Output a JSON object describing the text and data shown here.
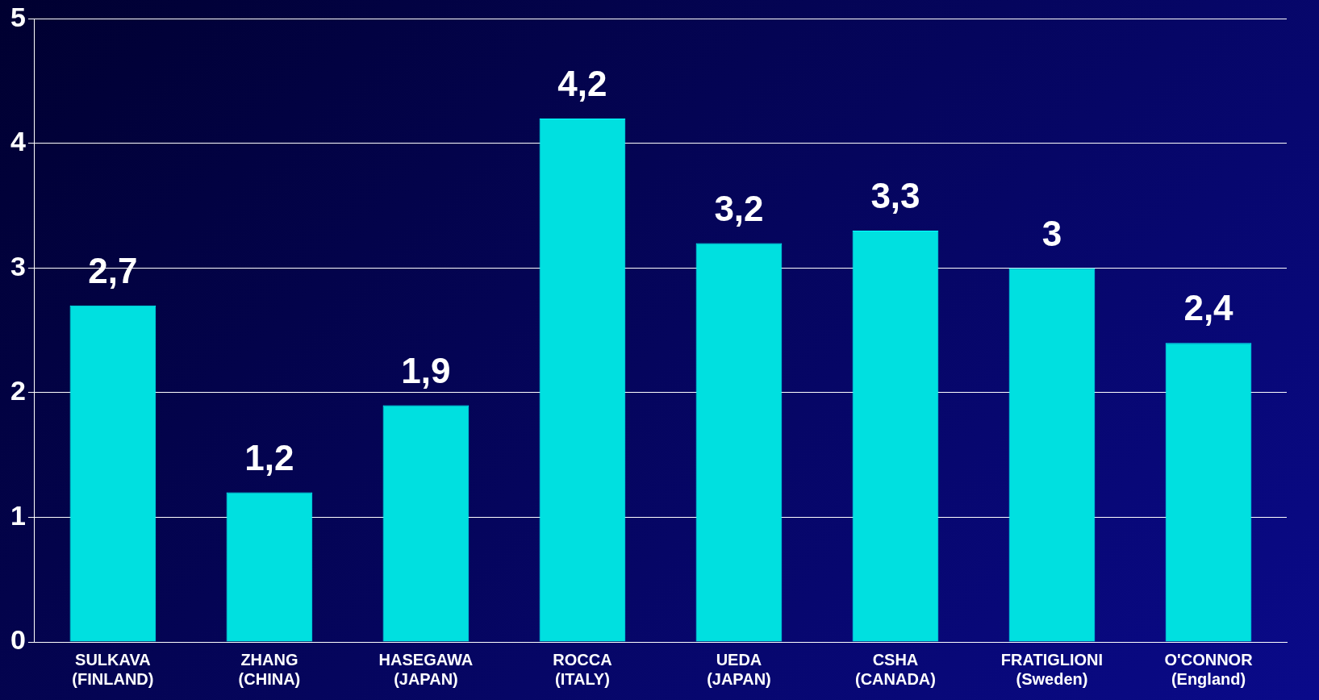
{
  "chart_data": {
    "type": "bar",
    "categories": [
      "SULKAVA (FINLAND)",
      "ZHANG (CHINA)",
      "HASEGAWA (JAPAN)",
      "ROCCA (ITALY)",
      "UEDA (JAPAN)",
      "CSHA (CANADA)",
      "FRATIGLIONI (Sweden)",
      "O'CONNOR (England)"
    ],
    "values": [
      2.7,
      1.2,
      1.9,
      4.2,
      3.2,
      3.3,
      3,
      2.4
    ],
    "value_labels": [
      "2,7",
      "1,2",
      "1,9",
      "4,2",
      "3,2",
      "3,3",
      "3",
      "2,4"
    ],
    "color": "#00e0e0",
    "ylim": [
      0,
      5
    ],
    "yticks": [
      0,
      1,
      2,
      3,
      4,
      5
    ],
    "grid": "y",
    "legend": false
  }
}
